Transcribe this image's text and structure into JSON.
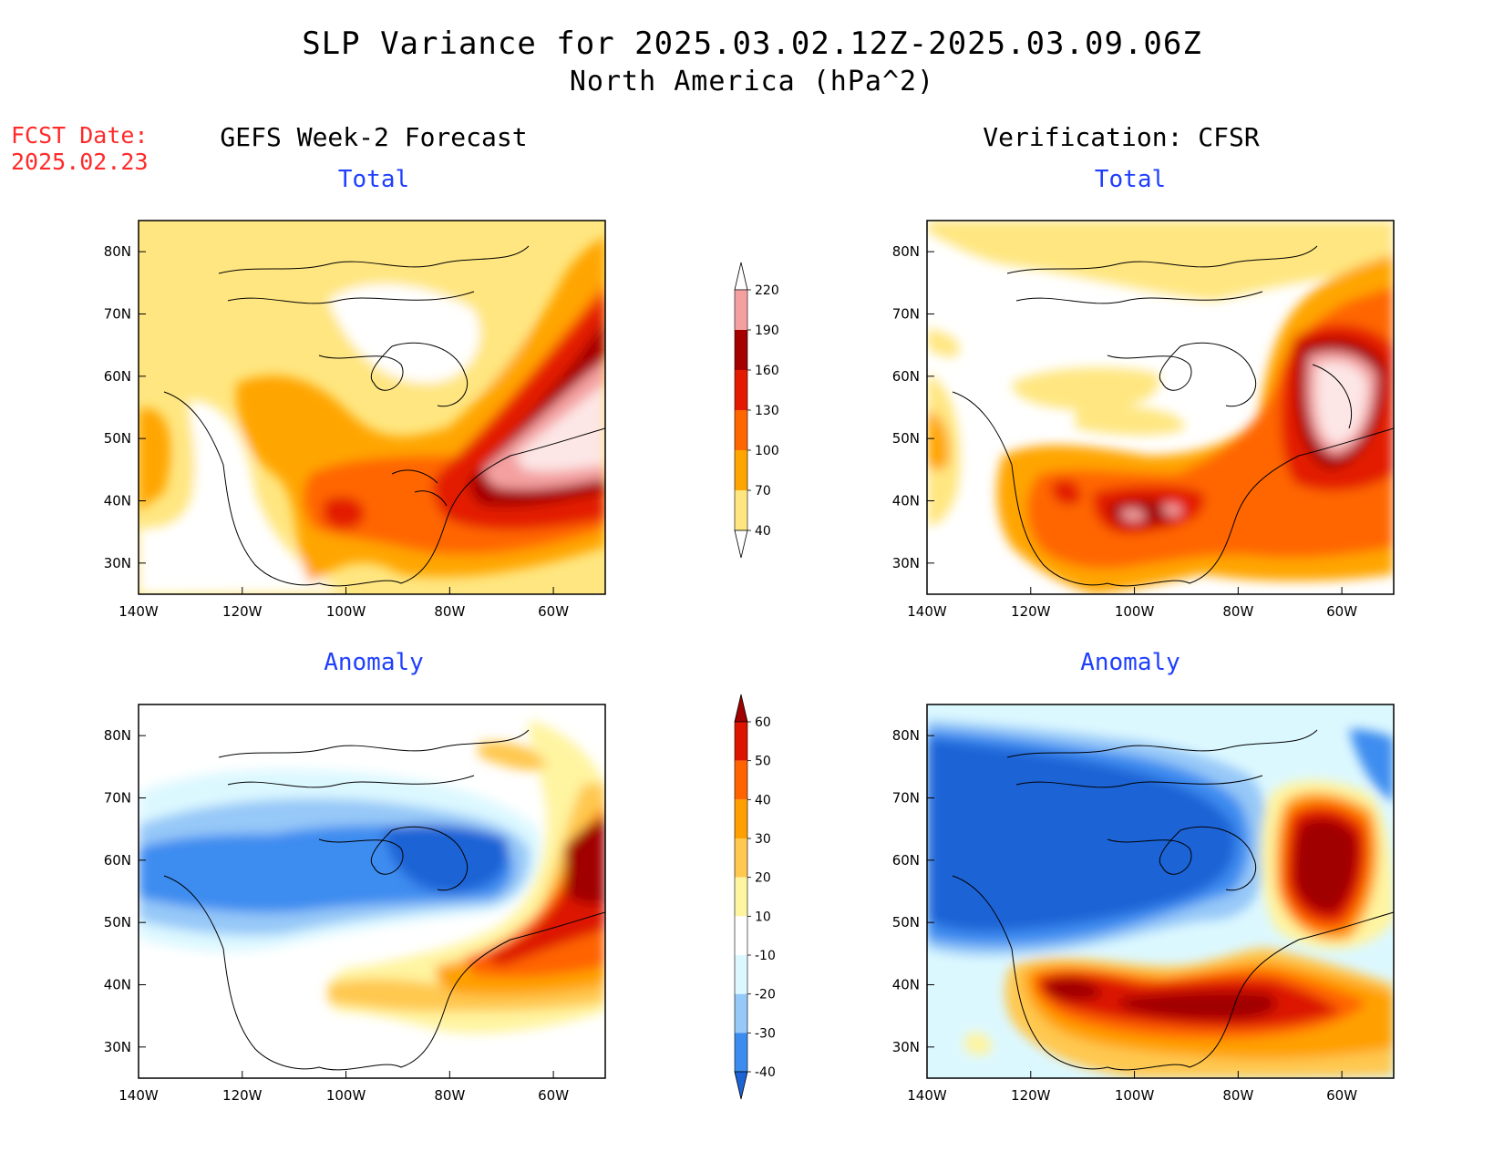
{
  "title": "SLP Variance for 2025.03.02.12Z-2025.03.09.06Z",
  "subtitle": "North America (hPa^2)",
  "fcst_date_label": "FCST Date:",
  "fcst_date_value": "2025.02.23",
  "left_column_title": "GEFS Week-2 Forecast",
  "right_column_title": "Verification: CFSR",
  "panel_titles": {
    "top_left": "Total",
    "top_right": "Total",
    "bottom_left": "Anomaly",
    "bottom_right": "Anomaly"
  },
  "axes": {
    "x_ticks": [
      "140W",
      "120W",
      "100W",
      "80W",
      "60W"
    ],
    "y_ticks": [
      "30N",
      "40N",
      "50N",
      "60N",
      "70N",
      "80N"
    ]
  },
  "colorbar_total": {
    "levels": [
      "40",
      "70",
      "100",
      "130",
      "160",
      "190",
      "220"
    ],
    "colors": [
      "#ffffff",
      "#ffe680",
      "#ffa500",
      "#ff6600",
      "#e31a00",
      "#a50000",
      "#f4a0a0",
      "#fde6e6"
    ]
  },
  "colorbar_anomaly": {
    "levels": [
      "-40",
      "-30",
      "-20",
      "-10",
      "10",
      "20",
      "30",
      "40",
      "50",
      "60"
    ],
    "colors": [
      "#1c64d6",
      "#3c8cf0",
      "#96c8f8",
      "#dcf8ff",
      "#ffffff",
      "#fff4a0",
      "#ffc850",
      "#ffa000",
      "#ff6400",
      "#dc1400",
      "#a00000"
    ]
  },
  "chart_data": [
    {
      "type": "heatmap",
      "panel": "GEFS Week-2 Forecast - Total",
      "xlim": [
        "140W",
        "50W"
      ],
      "ylim": [
        "25N",
        "85N"
      ],
      "features": [
        {
          "region": "Atlantic / Nova Scotia",
          "level_range": "190-220+"
        },
        {
          "region": "US Northeast coast band",
          "level_range": "130-190"
        },
        {
          "region": "Central Plains (~40N 100W)",
          "level_range": "130-160"
        },
        {
          "region": "Central Canada / Hudson Bay",
          "level_range": "<40"
        },
        {
          "region": "NE Pacific (~45N 140W)",
          "level_range": "70-100"
        }
      ]
    },
    {
      "type": "heatmap",
      "panel": "Verification: CFSR - Total",
      "xlim": [
        "140W",
        "50W"
      ],
      "ylim": [
        "25N",
        "85N"
      ],
      "features": [
        {
          "region": "Labrador / Gulf of St Lawrence (~55N 62W)",
          "level_range": "190-220+"
        },
        {
          "region": "Central US (~38N 95W)",
          "level_range": "160-220"
        },
        {
          "region": "Eastern US / Atlantic",
          "level_range": "100-160"
        },
        {
          "region": "Western Canada / Arctic",
          "level_range": "<40"
        }
      ]
    },
    {
      "type": "heatmap",
      "panel": "GEFS Week-2 Forecast - Anomaly",
      "xlim": [
        "140W",
        "50W"
      ],
      "ylim": [
        "25N",
        "85N"
      ],
      "features": [
        {
          "region": "Labrador Sea / Newfoundland",
          "level_range": "40-60+"
        },
        {
          "region": "Mid-Atlantic coast",
          "level_range": "30-50"
        },
        {
          "region": "Hudson Bay",
          "level_range": "-40 to -30"
        },
        {
          "region": "Western Canada",
          "level_range": "-30 to -10"
        }
      ]
    },
    {
      "type": "heatmap",
      "panel": "Verification: CFSR - Anomaly",
      "xlim": [
        "140W",
        "50W"
      ],
      "ylim": [
        "25N",
        "85N"
      ],
      "features": [
        {
          "region": "Labrador / Quebec (~57N 62W)",
          "level_range": "50-60+"
        },
        {
          "region": "Central / Southern US band (~38N)",
          "level_range": "40-60+"
        },
        {
          "region": "Canada and Alaska",
          "level_range": "-40 and below"
        },
        {
          "region": "NE Pacific (~33N 130W)",
          "level_range": "10-20"
        }
      ]
    }
  ]
}
